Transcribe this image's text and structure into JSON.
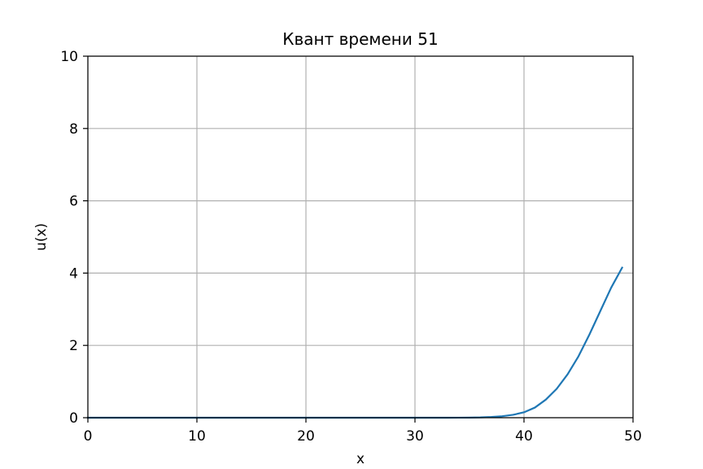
{
  "chart_data": {
    "type": "line",
    "title": "Квант времени 51",
    "xlabel": "x",
    "ylabel": "u(x)",
    "xlim": [
      0,
      50
    ],
    "ylim": [
      0,
      10
    ],
    "xticks": [
      0,
      10,
      20,
      30,
      40,
      50
    ],
    "yticks": [
      0,
      2,
      4,
      6,
      8,
      10
    ],
    "xtick_labels": [
      "0",
      "10",
      "20",
      "30",
      "40",
      "50"
    ],
    "ytick_labels": [
      "0",
      "2",
      "4",
      "6",
      "8",
      "10"
    ],
    "grid": true,
    "series": [
      {
        "color": "#1f77b4",
        "x": [
          0,
          1,
          2,
          3,
          4,
          5,
          6,
          7,
          8,
          9,
          10,
          11,
          12,
          13,
          14,
          15,
          16,
          17,
          18,
          19,
          20,
          21,
          22,
          23,
          24,
          25,
          26,
          27,
          28,
          29,
          30,
          31,
          32,
          33,
          34,
          35,
          36,
          37,
          38,
          39,
          40,
          41,
          42,
          43,
          44,
          45,
          46,
          47,
          48,
          49
        ],
        "y": [
          0,
          0,
          0,
          0,
          0,
          0,
          0,
          0,
          0,
          0,
          0,
          0,
          0,
          0,
          0,
          0,
          0,
          0,
          0,
          0,
          0,
          0,
          0,
          0,
          0,
          0,
          0,
          0,
          0,
          0,
          0,
          0,
          0,
          0,
          0.001,
          0.003,
          0.008,
          0.02,
          0.04,
          0.08,
          0.15,
          0.28,
          0.5,
          0.8,
          1.2,
          1.7,
          2.3,
          2.95,
          3.6,
          4.15
        ]
      }
    ]
  }
}
